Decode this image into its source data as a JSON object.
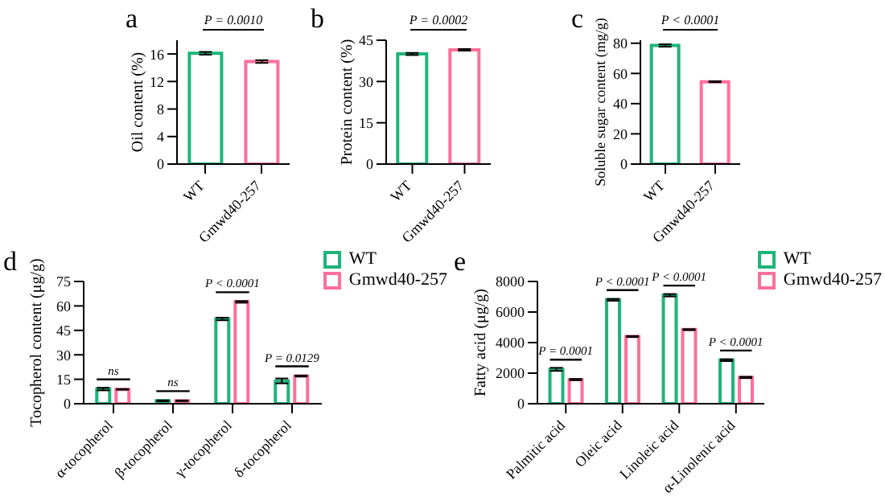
{
  "chart_data": [
    {
      "type": "bar",
      "title": "a",
      "ylabel": "Oil content (%)",
      "categories": [
        "WT",
        "Gmwd40-257"
      ],
      "values": [
        16.1,
        14.9
      ],
      "errors": [
        0.2,
        0.2
      ],
      "colors": [
        "#1db57a",
        "#ff6f9b"
      ],
      "ylim": [
        0,
        18
      ],
      "yticks": [
        0,
        4,
        8,
        12,
        16
      ],
      "annotations": [
        "P = 0.0010"
      ]
    },
    {
      "type": "bar",
      "title": "b",
      "ylabel": "Protein content (%)",
      "categories": [
        "WT",
        "Gmwd40-257"
      ],
      "values": [
        40,
        41.5
      ],
      "errors": [
        0.4,
        0.3
      ],
      "colors": [
        "#1db57a",
        "#ff6f9b"
      ],
      "ylim": [
        0,
        45
      ],
      "yticks": [
        0,
        15,
        30,
        45
      ],
      "annotations": [
        "P = 0.0002"
      ]
    },
    {
      "type": "bar",
      "title": "c",
      "ylabel": "Soluble sugar content (mg/g)",
      "categories": [
        "WT",
        "Gmwd40-257"
      ],
      "values": [
        78.5,
        54.5
      ],
      "errors": [
        0.8,
        0.3
      ],
      "colors": [
        "#1db57a",
        "#ff6f9b"
      ],
      "ylim": [
        0,
        82
      ],
      "yticks": [
        0,
        20,
        40,
        60,
        80
      ],
      "annotations": [
        "P < 0.0001"
      ]
    },
    {
      "type": "bar",
      "title": "d",
      "ylabel": "Tocopherol content (μg/g)",
      "categories": [
        "α-tocopherol",
        "β-tocopherol",
        "γ-tocopherol",
        "δ-tocopherol"
      ],
      "series": [
        {
          "name": "WT",
          "color": "#1db57a",
          "values": [
            9,
            1.8,
            52,
            14
          ],
          "errors": [
            0.8,
            0.3,
            0.8,
            1.5
          ]
        },
        {
          "name": "Gmwd40-257",
          "color": "#ff6f9b",
          "values": [
            8.8,
            1.8,
            62.5,
            17
          ],
          "errors": [
            0.2,
            0.2,
            0.5,
            0.3
          ]
        }
      ],
      "ylim": [
        0,
        75
      ],
      "yticks": [
        0,
        15,
        30,
        45,
        60,
        75
      ],
      "legend": "top right",
      "annotations": [
        "ns",
        "ns",
        "P < 0.0001",
        "P = 0.0129"
      ]
    },
    {
      "type": "bar",
      "title": "e",
      "ylabel": "Fatty acid (μg/g)",
      "categories": [
        "Palmitic acid",
        "Oleic acid",
        "Linoleic acid",
        "α-Linolenic acid"
      ],
      "series": [
        {
          "name": "WT",
          "color": "#1db57a",
          "values": [
            2250,
            6800,
            7100,
            2850
          ],
          "errors": [
            100,
            60,
            80,
            60
          ]
        },
        {
          "name": "Gmwd40-257",
          "color": "#ff6f9b",
          "values": [
            1580,
            4400,
            4850,
            1720
          ],
          "errors": [
            40,
            30,
            30,
            40
          ]
        }
      ],
      "ylim": [
        0,
        8000
      ],
      "yticks": [
        0,
        2000,
        4000,
        6000,
        8000
      ],
      "legend": "top right",
      "annotations": [
        "P = 0.0001",
        "P < 0.0001",
        "P < 0.0001",
        "P < 0.0001"
      ]
    }
  ]
}
